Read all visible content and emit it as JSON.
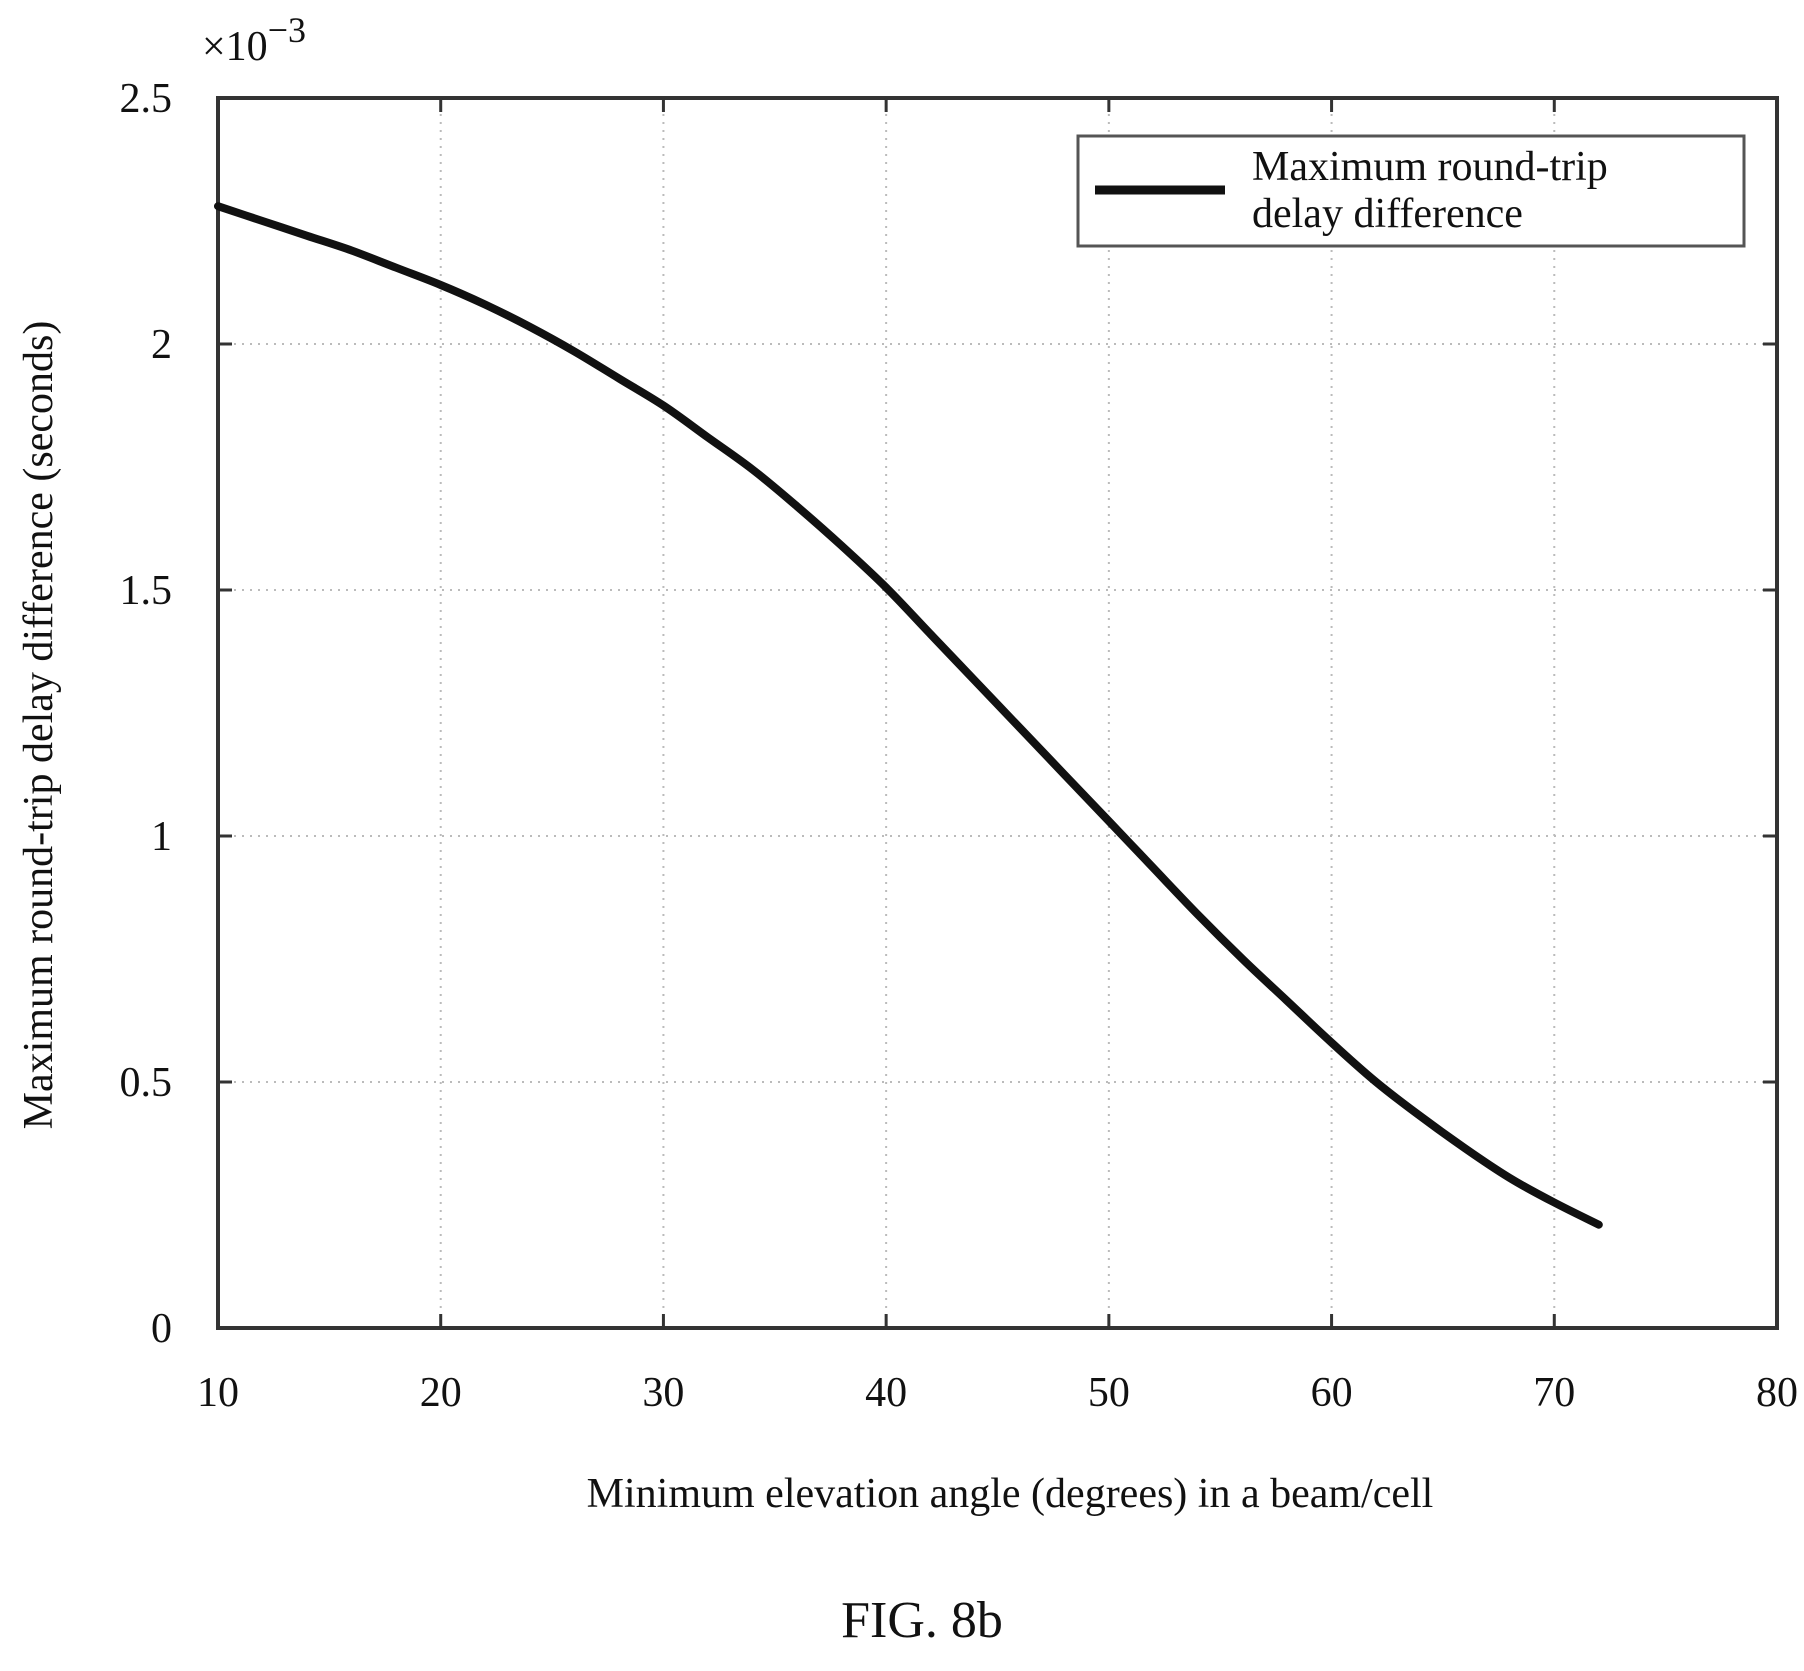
{
  "figure": {
    "caption": "FIG. 8b"
  },
  "chart_data": {
    "type": "line",
    "xlabel": "Minimum elevation angle (degrees) in a beam/cell",
    "ylabel": "Maximum round-trip delay difference (seconds)",
    "y_multiplier": {
      "base": "×10",
      "exponent": "−3"
    },
    "xlim": [
      10,
      80
    ],
    "ylim": [
      0,
      2.5
    ],
    "x_ticks": [
      10,
      20,
      30,
      40,
      50,
      60,
      70,
      80
    ],
    "x_tick_labels": [
      "10",
      "20",
      "30",
      "40",
      "50",
      "60",
      "70",
      "80"
    ],
    "y_ticks": [
      0,
      0.5,
      1,
      1.5,
      2,
      2.5
    ],
    "y_tick_labels": [
      "0",
      "0.5",
      "1",
      "1.5",
      "2",
      "2.5"
    ],
    "grid": true,
    "legend": {
      "placement": "top-right",
      "lines": [
        "Maximum round-trip",
        "delay difference"
      ]
    },
    "series": [
      {
        "name": "Maximum round-trip delay difference",
        "color": "#111111",
        "x": [
          10,
          12,
          14,
          16,
          18,
          20,
          22,
          24,
          26,
          28,
          30,
          32,
          34,
          36,
          38,
          40,
          42,
          44,
          46,
          48,
          50,
          52,
          54,
          56,
          58,
          60,
          62,
          64,
          66,
          68,
          70,
          72
        ],
        "y": [
          2.28,
          2.25,
          2.22,
          2.19,
          2.155,
          2.12,
          2.08,
          2.035,
          1.985,
          1.93,
          1.875,
          1.81,
          1.745,
          1.67,
          1.59,
          1.505,
          1.41,
          1.315,
          1.22,
          1.125,
          1.03,
          0.935,
          0.84,
          0.75,
          0.665,
          0.58,
          0.5,
          0.43,
          0.365,
          0.305,
          0.255,
          0.21
        ]
      }
    ]
  }
}
